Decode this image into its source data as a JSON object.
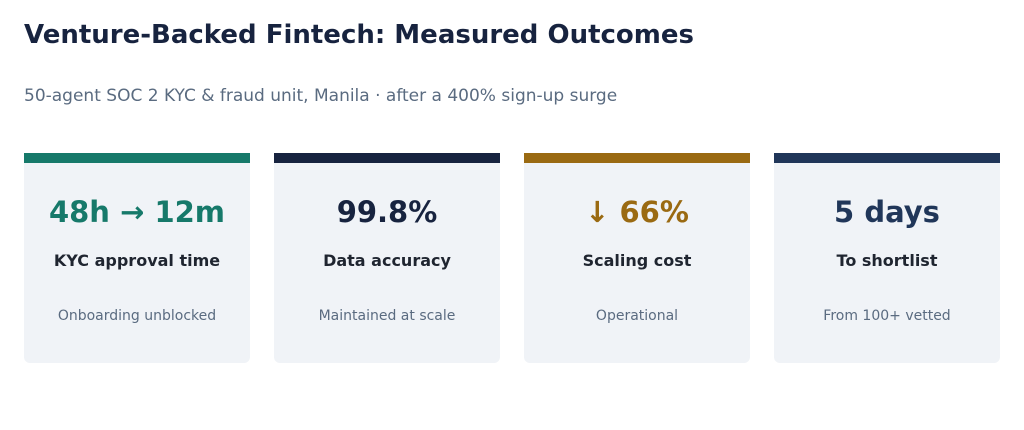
{
  "header": {
    "title": "Venture-Backed Fintech: Measured Outcomes",
    "subtitle": "50-agent SOC 2 KYC & fraud unit, Manila · after a 400% sign-up surge"
  },
  "cards": [
    {
      "value": "48h → 12m",
      "label": "KYC approval time",
      "note": "Onboarding unblocked",
      "color": "#16796a"
    },
    {
      "value": "99.8%",
      "label": "Data accuracy",
      "note": "Maintained at scale",
      "color": "#17233f"
    },
    {
      "value": "↓ 66%",
      "label": "Scaling cost",
      "note": "Operational",
      "color": "#9a6a12"
    },
    {
      "value": "5 days",
      "label": "To shortlist",
      "note": "From 100+ vetted",
      "color": "#203659"
    }
  ]
}
